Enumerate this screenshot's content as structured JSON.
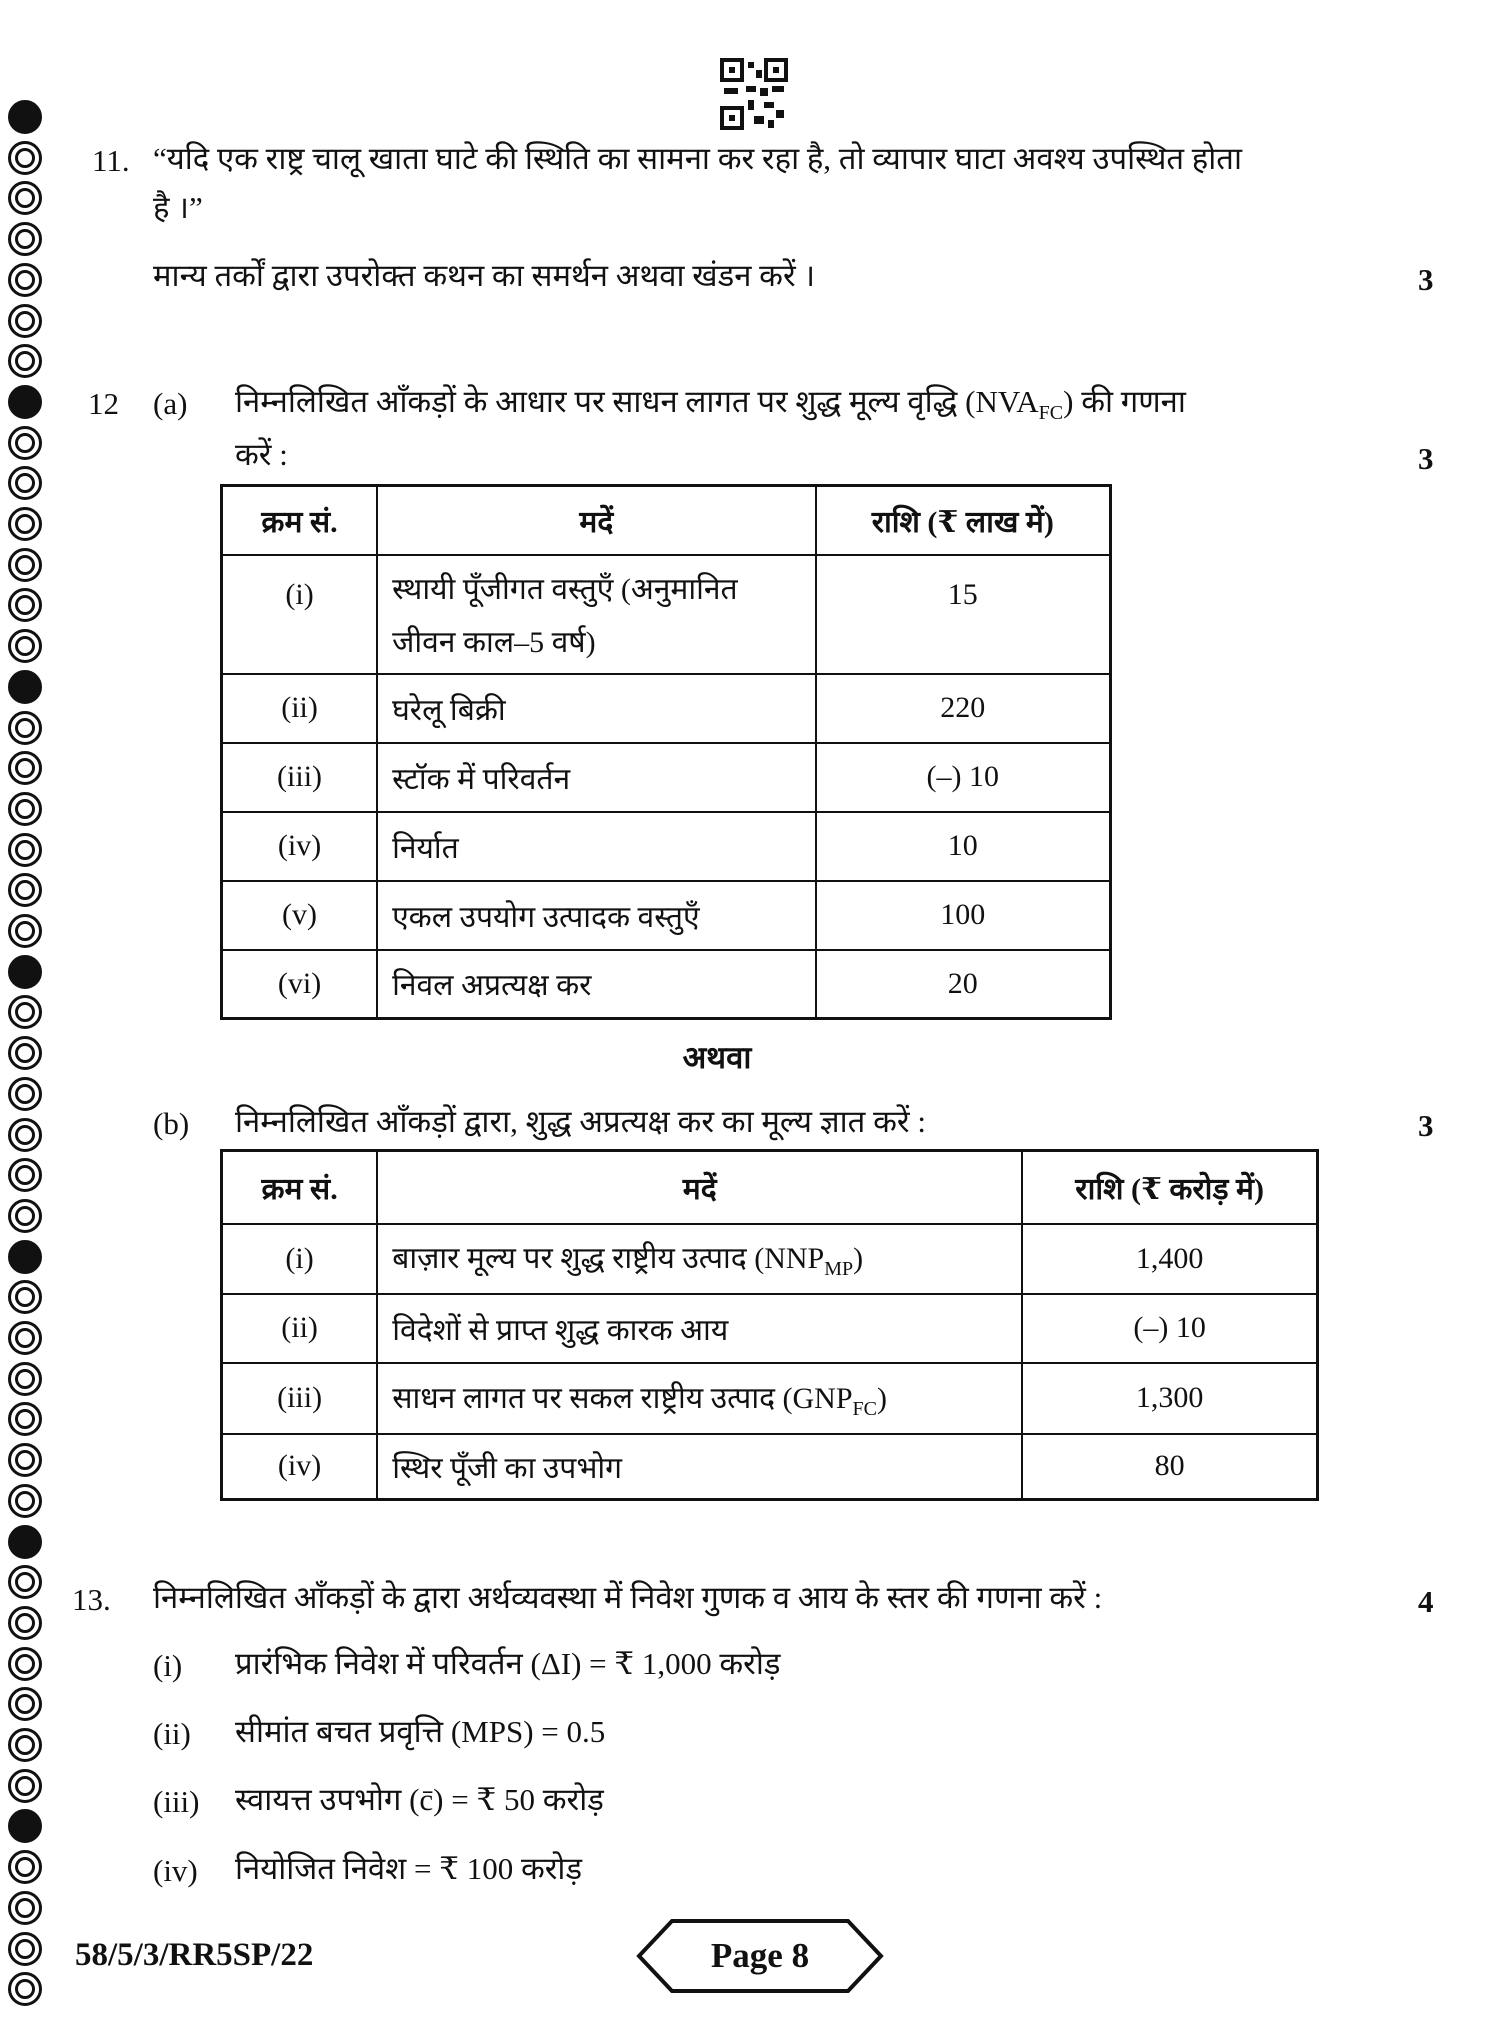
{
  "q11": {
    "number": "11.",
    "line1": "“यदि एक राष्ट्र चालू खाता घाटे की स्थिति का सामना कर रहा है, तो व्यापार घाटा अवश्य उपस्थित होता",
    "line2": "है ।”",
    "instruction": "मान्य तर्कों द्वारा उपरोक्त कथन का समर्थन अथवा खंडन करें ।",
    "marks": "3"
  },
  "q12": {
    "number": "12",
    "a": {
      "label": "(a)",
      "line1_pre": "निम्नलिखित आँकड़ों के आधार पर साधन लागत पर शुद्ध मूल्य वृद्धि (NVA",
      "line1_sub": "FC",
      "line1_post": ") की गणना",
      "line2": "करें :",
      "marks": "3",
      "headers": [
        "क्रम सं.",
        "मदें",
        "राशि (₹ लाख में)"
      ],
      "rows": [
        {
          "sno": "(i)",
          "item": "स्थायी पूँजीगत वस्तुएँ (अनुमानित",
          "item2": "जीवन काल–5 वर्ष)",
          "amount": "15"
        },
        {
          "sno": "(ii)",
          "item": "घरेलू बिक्री",
          "amount": "220"
        },
        {
          "sno": "(iii)",
          "item": "स्टॉक में परिवर्तन",
          "amount": "(–) 10"
        },
        {
          "sno": "(iv)",
          "item": "निर्यात",
          "amount": "10"
        },
        {
          "sno": "(v)",
          "item": "एकल उपयोग उत्पादक वस्तुएँ",
          "amount": "100"
        },
        {
          "sno": "(vi)",
          "item": "निवल अप्रत्यक्ष कर",
          "amount": "20"
        }
      ]
    },
    "or": "अथवा",
    "b": {
      "label": "(b)",
      "text": "निम्नलिखित आँकड़ों द्वारा, शुद्ध अप्रत्यक्ष कर का मूल्य ज्ञात करें :",
      "marks": "3",
      "headers": [
        "क्रम सं.",
        "मदें",
        "राशि (₹ करोड़ में)"
      ],
      "rows": [
        {
          "sno": "(i)",
          "item": "बाज़ार मूल्य पर शुद्ध राष्ट्रीय उत्पाद (NNP",
          "sub": "MP",
          "post": ")",
          "amount": "1,400"
        },
        {
          "sno": "(ii)",
          "item": "विदेशों से प्राप्त शुद्ध कारक आय",
          "amount": "(–) 10"
        },
        {
          "sno": "(iii)",
          "item": "साधन लागत पर सकल राष्ट्रीय उत्पाद (GNP",
          "sub": "FC",
          "post": ")",
          "amount": "1,300"
        },
        {
          "sno": "(iv)",
          "item": "स्थिर पूँजी का उपभोग",
          "amount": "80"
        }
      ]
    }
  },
  "q13": {
    "number": "13.",
    "text": "निम्नलिखित आँकड़ों के द्वारा अर्थव्यवस्था में निवेश गुणक व आय के स्तर की गणना करें :",
    "marks": "4",
    "items": [
      {
        "label": "(i)",
        "text": "प्रारंभिक निवेश में परिवर्तन (ΔI) = ₹ 1,000 करोड़"
      },
      {
        "label": "(ii)",
        "text": "सीमांत बचत प्रवृत्ति (MPS) = 0.5"
      },
      {
        "label": "(iii)",
        "text": "स्वायत्त उपभोग (c̄) = ₹ 50 करोड़"
      },
      {
        "label": "(iv)",
        "text": "नियोजित निवेश = ₹ 100 करोड़"
      }
    ]
  },
  "footer": {
    "code": "58/5/3/RR5SP/22",
    "page": "Page 8"
  },
  "icons": {
    "top": "qr-code-icon",
    "margin": "ring-border-icon"
  }
}
